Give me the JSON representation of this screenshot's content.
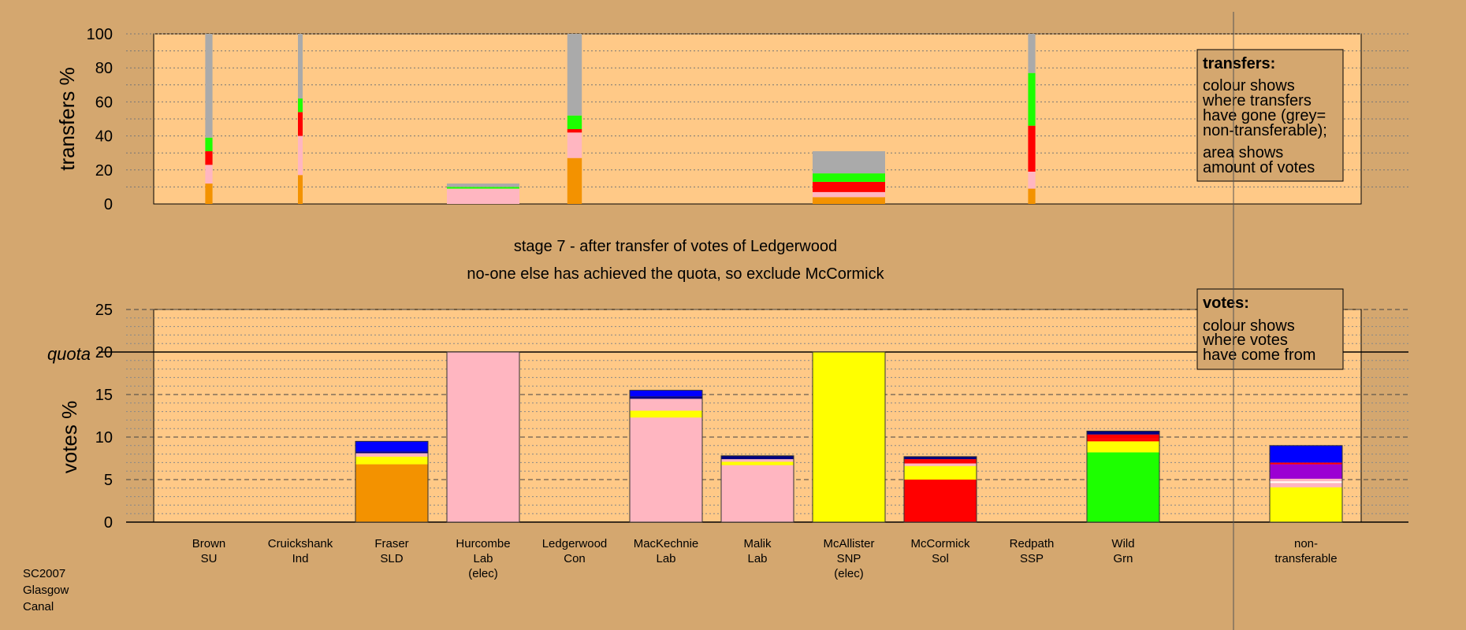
{
  "stage": {
    "line1": "stage 7 - after transfer of votes of Ledgerwood",
    "line2": "no-one else has achieved the quota, so exclude McCormick"
  },
  "footer": [
    "SC2007",
    "Glasgow",
    "Canal"
  ],
  "transfers_legend": {
    "title": "transfers:",
    "lines": [
      "colour shows",
      "where transfers",
      "have gone (grey=",
      "non-transferable);",
      "area shows",
      "amount of votes"
    ]
  },
  "votes_legend": {
    "title": "votes:",
    "lines": [
      "colour shows",
      "where votes",
      "have come from"
    ]
  },
  "colors": {
    "background": "#D4A76F",
    "plot": "#FFC987",
    "SU": "#F39200",
    "Ind": "#FFB6C1",
    "SLD": "#F39200",
    "Lab": "#FFB6C1",
    "SNP": "#FFFF00",
    "Sol": "#FF0000",
    "Grn": "#1DFF00",
    "SSP": "#FF0000",
    "Con": "#0000FF",
    "grey": "#AAAAAA",
    "purple": "#9B00D3",
    "navy": "#000080",
    "white": "#FFFFFF"
  },
  "chart_data": [
    {
      "type": "bar",
      "ylabel": "transfers %",
      "ylim": [
        0,
        100
      ],
      "yticks": [
        0,
        20,
        40,
        60,
        80,
        100
      ],
      "bars": [
        {
          "candidate": "Brown",
          "width_share": 0.1,
          "segments": [
            {
              "color": "#F39200",
              "value": 12
            },
            {
              "color": "#FFB6C1",
              "value": 11
            },
            {
              "color": "#FF0000",
              "value": 8
            },
            {
              "color": "#1DFF00",
              "value": 8
            },
            {
              "color": "#AAAAAA",
              "value": 61
            }
          ]
        },
        {
          "candidate": "Cruickshank",
          "width_share": 0.05,
          "segments": [
            {
              "color": "#F39200",
              "value": 17
            },
            {
              "color": "#FFB6C1",
              "value": 23
            },
            {
              "color": "#FF0000",
              "value": 14
            },
            {
              "color": "#1DFF00",
              "value": 8
            },
            {
              "color": "#AAAAAA",
              "value": 38
            }
          ]
        },
        {
          "candidate": "Hurcombe",
          "width_share": 1.0,
          "segments": [
            {
              "color": "#FFB6C1",
              "value": 9
            },
            {
              "color": "#1DFF00",
              "value": 1
            },
            {
              "color": "#AAAAAA",
              "value": 2
            }
          ]
        },
        {
          "candidate": "Ledgerwood",
          "width_share": 0.2,
          "segments": [
            {
              "color": "#F39200",
              "value": 27
            },
            {
              "color": "#FFB6C1",
              "value": 15
            },
            {
              "color": "#FF0000",
              "value": 2
            },
            {
              "color": "#1DFF00",
              "value": 8
            },
            {
              "color": "#AAAAAA",
              "value": 48
            }
          ]
        },
        {
          "candidate": "McAllister",
          "width_share": 1.0,
          "segments": [
            {
              "color": "#F39200",
              "value": 4
            },
            {
              "color": "#FFB6C1",
              "value": 3
            },
            {
              "color": "#FF0000",
              "value": 6
            },
            {
              "color": "#1DFF00",
              "value": 5
            },
            {
              "color": "#AAAAAA",
              "value": 13
            }
          ]
        },
        {
          "candidate": "Redpath",
          "width_share": 0.1,
          "segments": [
            {
              "color": "#F39200",
              "value": 9
            },
            {
              "color": "#FFB6C1",
              "value": 10
            },
            {
              "color": "#FF0000",
              "value": 27
            },
            {
              "color": "#1DFF00",
              "value": 31
            },
            {
              "color": "#AAAAAA",
              "value": 23
            }
          ]
        }
      ]
    },
    {
      "type": "bar",
      "ylabel": "votes %",
      "ylim": [
        0,
        25
      ],
      "yticks": [
        0,
        5,
        10,
        15,
        20,
        25
      ],
      "quota": 20,
      "quota_label": "quota",
      "categories": [
        {
          "name": "Brown",
          "party": "SU",
          "note": ""
        },
        {
          "name": "Cruickshank",
          "party": "Ind",
          "note": ""
        },
        {
          "name": "Fraser",
          "party": "SLD",
          "note": ""
        },
        {
          "name": "Hurcombe",
          "party": "Lab",
          "note": "(elec)"
        },
        {
          "name": "Ledgerwood",
          "party": "Con",
          "note": ""
        },
        {
          "name": "MacKechnie",
          "party": "Lab",
          "note": ""
        },
        {
          "name": "Malik",
          "party": "Lab",
          "note": ""
        },
        {
          "name": "McAllister",
          "party": "SNP",
          "note": "(elec)"
        },
        {
          "name": "McCormick",
          "party": "Sol",
          "note": ""
        },
        {
          "name": "Redpath",
          "party": "SSP",
          "note": ""
        },
        {
          "name": "Wild",
          "party": "Grn",
          "note": ""
        },
        {
          "name": "non-",
          "party": "transferable",
          "note": ""
        }
      ],
      "stacks": [
        [],
        [],
        [
          {
            "color": "#F39200",
            "value": 6.8
          },
          {
            "color": "#FFFF00",
            "value": 0.9
          },
          {
            "color": "#FFB6C1",
            "value": 0.4
          },
          {
            "color": "#000080",
            "value": 0.2
          },
          {
            "color": "#0000FF",
            "value": 1.2
          }
        ],
        [
          {
            "color": "#FFB6C1",
            "value": 20
          }
        ],
        [],
        [
          {
            "color": "#FFB6C1",
            "value": 12.3
          },
          {
            "color": "#FFFF00",
            "value": 0.8
          },
          {
            "color": "#FFB6C1",
            "value": 1.4
          },
          {
            "color": "#000080",
            "value": 0.3
          },
          {
            "color": "#0000FF",
            "value": 0.7
          }
        ],
        [
          {
            "color": "#FFB6C1",
            "value": 6.7
          },
          {
            "color": "#FFFF00",
            "value": 0.4
          },
          {
            "color": "#FFB6C1",
            "value": 0.3
          },
          {
            "color": "#000080",
            "value": 0.4
          }
        ],
        [
          {
            "color": "#FFFF00",
            "value": 20
          }
        ],
        [
          {
            "color": "#FF0000",
            "value": 5.0
          },
          {
            "color": "#FFFF00",
            "value": 1.6
          },
          {
            "color": "#FFB6C1",
            "value": 0.3
          },
          {
            "color": "#FF0000",
            "value": 0.5
          },
          {
            "color": "#000080",
            "value": 0.3
          }
        ],
        [],
        [
          {
            "color": "#1DFF00",
            "value": 8.2
          },
          {
            "color": "#FFFF00",
            "value": 1.3
          },
          {
            "color": "#FF0000",
            "value": 0.3
          },
          {
            "color": "#FF0000",
            "value": 0.5
          },
          {
            "color": "#000080",
            "value": 0.4
          }
        ],
        [
          {
            "color": "#FFFF00",
            "value": 4.1
          },
          {
            "color": "#FFB6C1",
            "value": 0.5
          },
          {
            "color": "#FFFFFF",
            "value": 0.2
          },
          {
            "color": "#FFB6C1",
            "value": 0.3
          },
          {
            "color": "#9B00D3",
            "value": 1.7
          },
          {
            "color": "#FF0000",
            "value": 0.2
          },
          {
            "color": "#0000FF",
            "value": 2.0
          }
        ]
      ]
    }
  ]
}
